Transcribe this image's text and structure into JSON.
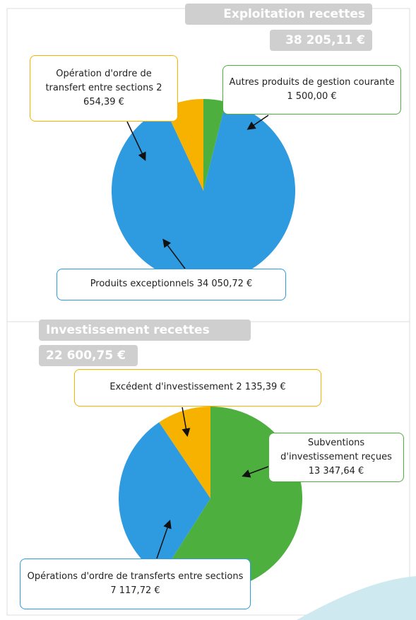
{
  "chart_data": [
    {
      "type": "pie",
      "title": "Exploitation recettes",
      "subtitle": "38 205,11 €",
      "categories": [
        "Autres produits de gestion courante",
        "Produits exceptionnels",
        "Opération d'ordre de transfert entre sections"
      ],
      "values": [
        1500.0,
        34050.72,
        2654.39
      ],
      "value_labels": [
        "1 500,00 €",
        "34 050,72 €",
        "2 654,39 €"
      ],
      "colors": [
        "#4caf3e",
        "#2e9ae0",
        "#f7b200"
      ]
    },
    {
      "type": "pie",
      "title": "Investissement recettes",
      "subtitle": "22 600,75 €",
      "categories": [
        "Subventions d'investissement reçues",
        "Opérations d'ordre de transferts entre sections",
        "Excédent d'investissement"
      ],
      "values": [
        13347.64,
        7117.72,
        2135.39
      ],
      "value_labels": [
        "13 347,64 €",
        "7 117,72 €",
        "2 135,39 €"
      ],
      "colors": [
        "#4caf3e",
        "#2e9ae0",
        "#f7b200"
      ]
    }
  ]
}
